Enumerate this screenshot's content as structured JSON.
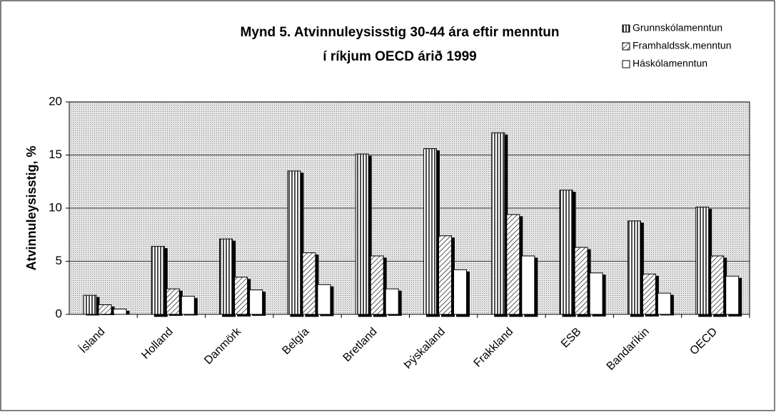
{
  "chart_data": {
    "type": "bar",
    "title": [
      "Mynd 5.  Atvinnuleysisstig 30-44 ára eftir menntun",
      "í ríkjum OECD árið 1999"
    ],
    "y_label": "Atvinnuleysisstig, %",
    "categories": [
      "Ísland",
      "Holland",
      "Danmörk",
      "Belgía",
      "Bretland",
      "Þýskaland",
      "Frakkland",
      "ESB",
      "Bandaríkin",
      "OECD"
    ],
    "series": [
      {
        "name": "Grunnskólamenntun",
        "color": "#ffffff",
        "pattern": "vertical",
        "values": [
          1.8,
          6.4,
          7.1,
          13.5,
          15.1,
          15.6,
          17.1,
          11.7,
          8.8,
          10.1
        ]
      },
      {
        "name": "Framhaldssk.menntun",
        "color": "#ffffff",
        "pattern": "diagonal",
        "values": [
          0.9,
          2.4,
          3.5,
          5.8,
          5.5,
          7.4,
          9.4,
          6.3,
          3.8,
          5.5
        ]
      },
      {
        "name": "Háskólamenntun",
        "color": "#ffffff",
        "pattern": "none",
        "values": [
          0.5,
          1.7,
          2.3,
          2.8,
          2.4,
          4.2,
          5.5,
          3.9,
          2.0,
          3.6
        ]
      }
    ],
    "ylim": [
      0,
      20
    ],
    "yticks": [
      0,
      5,
      10,
      15,
      20
    ],
    "grid": true,
    "legend": "top-right"
  }
}
